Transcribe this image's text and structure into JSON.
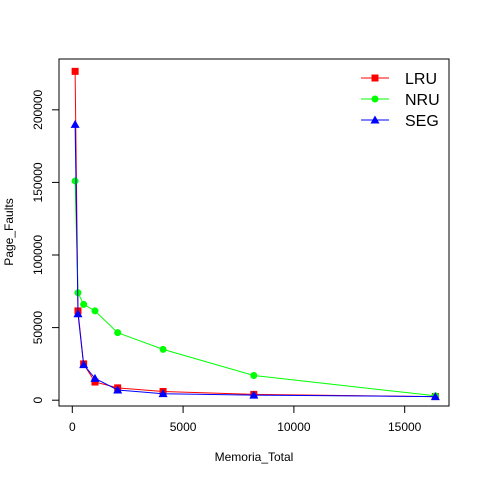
{
  "chart_data": {
    "type": "line",
    "xlabel": "Memoria_Total",
    "ylabel": "Page_Faults",
    "xlim": [
      -600,
      17000
    ],
    "ylim": [
      -4000,
      235000
    ],
    "xticks": [
      0,
      5000,
      10000,
      15000
    ],
    "xtick_labels": [
      "0",
      "5000",
      "10000",
      "15000"
    ],
    "yticks": [
      0,
      50000,
      100000,
      150000,
      200000
    ],
    "ytick_labels": [
      "0",
      "50000",
      "100000",
      "150000",
      "200000"
    ],
    "grid": false,
    "legend_position": "top-right",
    "x": [
      128,
      256,
      512,
      1024,
      2048,
      4096,
      8192,
      16384
    ],
    "series": [
      {
        "name": "LRU",
        "color": "#ff0000",
        "marker": "square",
        "values": [
          226500,
          61500,
          25000,
          12500,
          8500,
          6000,
          4000,
          2500
        ]
      },
      {
        "name": "NRU",
        "color": "#00ff00",
        "marker": "circle",
        "values": [
          151000,
          74000,
          66000,
          61500,
          46500,
          35000,
          17000,
          3000
        ]
      },
      {
        "name": "SEG",
        "color": "#0000ff",
        "marker": "triangle",
        "values": [
          190000,
          59500,
          24500,
          15000,
          7000,
          4500,
          3500,
          2500
        ]
      }
    ]
  }
}
